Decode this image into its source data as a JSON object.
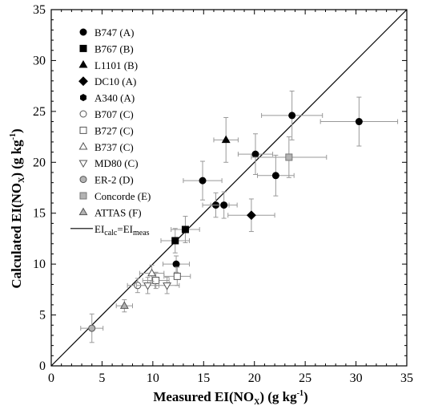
{
  "chart_data": {
    "type": "scatter",
    "title": "",
    "xlabel": {
      "main": "Measured EI(NO",
      "sub": "X",
      "tail": ") (g kg",
      "sup": "-1",
      "end": ")"
    },
    "ylabel": {
      "main": "Calculated EI(NO",
      "sub": "X",
      "tail": ") (g kg",
      "sup": "-1",
      "end": ")"
    },
    "xlim": [
      0,
      35
    ],
    "ylim": [
      0,
      35
    ],
    "xticks": [
      "0",
      "5",
      "10",
      "15",
      "20",
      "25",
      "30",
      "35"
    ],
    "yticks": [
      "0",
      "5",
      "10",
      "15",
      "20",
      "25",
      "30",
      "35"
    ],
    "grid": false,
    "legend_position": "top-left",
    "error_bar_color": "#999999",
    "reference_line": {
      "label": {
        "main": "EI",
        "sub1": "calc",
        "mid": "=EI",
        "sub2": "meas"
      },
      "points": [
        [
          0,
          0
        ],
        [
          35,
          35
        ]
      ]
    },
    "series": [
      {
        "name": "B747 (A)",
        "marker": "circle",
        "fill": "#000000",
        "stroke": "#000000",
        "points": [
          {
            "x": 12.3,
            "y": 10.0,
            "xerr": 1.3,
            "yerr": 0.8
          },
          {
            "x": 14.9,
            "y": 18.2,
            "xerr": 1.9,
            "yerr": 1.9
          },
          {
            "x": 16.2,
            "y": 15.8,
            "xerr": 1.3,
            "yerr": 1.2
          },
          {
            "x": 17.0,
            "y": 15.8,
            "xerr": 1.3,
            "yerr": 1.3
          },
          {
            "x": 20.1,
            "y": 20.8,
            "xerr": 1.7,
            "yerr": 2.0
          },
          {
            "x": 22.1,
            "y": 18.7,
            "xerr": 1.8,
            "yerr": 2.0
          },
          {
            "x": 23.7,
            "y": 24.6,
            "xerr": 3.0,
            "yerr": 2.4
          },
          {
            "x": 30.3,
            "y": 24.0,
            "xerr": 3.8,
            "yerr": 2.4
          }
        ]
      },
      {
        "name": "B767 (B)",
        "marker": "square",
        "fill": "#000000",
        "stroke": "#000000",
        "points": [
          {
            "x": 12.2,
            "y": 12.3,
            "xerr": 1.4,
            "yerr": 1.2
          },
          {
            "x": 13.2,
            "y": 13.4,
            "xerr": 1.4,
            "yerr": 1.3
          }
        ]
      },
      {
        "name": "L1101 (B)",
        "marker": "triangle-up",
        "fill": "#000000",
        "stroke": "#000000",
        "points": [
          {
            "x": 17.2,
            "y": 22.2,
            "xerr": 1.2,
            "yerr": 2.2
          }
        ]
      },
      {
        "name": "DC10 (A)",
        "marker": "diamond",
        "fill": "#000000",
        "stroke": "#000000",
        "points": [
          {
            "x": 19.7,
            "y": 14.8,
            "xerr": 2.3,
            "yerr": 1.6
          }
        ]
      },
      {
        "name": "A340 (A)",
        "marker": "hexagon",
        "fill": "#000000",
        "stroke": "#000000",
        "points": []
      },
      {
        "name": "B707 (C)",
        "marker": "circle",
        "fill": "#ffffff",
        "stroke": "#555555",
        "points": [
          {
            "x": 8.5,
            "y": 7.9,
            "xerr": 1.0,
            "yerr": 0.7
          }
        ]
      },
      {
        "name": "B727 (C)",
        "marker": "square",
        "fill": "#ffffff",
        "stroke": "#555555",
        "points": [
          {
            "x": 10.3,
            "y": 8.4,
            "xerr": 1.3,
            "yerr": 0.8
          },
          {
            "x": 12.4,
            "y": 8.8,
            "xerr": 1.3,
            "yerr": 0.9
          }
        ]
      },
      {
        "name": "B737 (C)",
        "marker": "triangle-up",
        "fill": "#ffffff",
        "stroke": "#555555",
        "points": [
          {
            "x": 9.9,
            "y": 9.1,
            "xerr": 1.2,
            "yerr": 0.8
          }
        ]
      },
      {
        "name": "MD80 (C)",
        "marker": "triangle-down",
        "fill": "#ffffff",
        "stroke": "#555555",
        "points": [
          {
            "x": 9.5,
            "y": 7.9,
            "xerr": 1.1,
            "yerr": 0.8
          },
          {
            "x": 11.4,
            "y": 7.9,
            "xerr": 1.2,
            "yerr": 0.8
          }
        ]
      },
      {
        "name": "ER-2 (D)",
        "marker": "circle",
        "fill": "#b3b3b3",
        "stroke": "#555555",
        "points": [
          {
            "x": 4.0,
            "y": 3.7,
            "xerr": 1.1,
            "yerr": 1.4
          }
        ]
      },
      {
        "name": "Concorde (E)",
        "marker": "square",
        "fill": "#b3b3b3",
        "stroke": "#777777",
        "points": [
          {
            "x": 23.4,
            "y": 20.5,
            "xerr": 3.7,
            "yerr": 2.0
          }
        ]
      },
      {
        "name": "ATTAS (F)",
        "marker": "triangle-up",
        "fill": "#b3b3b3",
        "stroke": "#555555",
        "points": [
          {
            "x": 7.2,
            "y": 5.9,
            "xerr": 0.8,
            "yerr": 0.6
          }
        ]
      }
    ]
  }
}
